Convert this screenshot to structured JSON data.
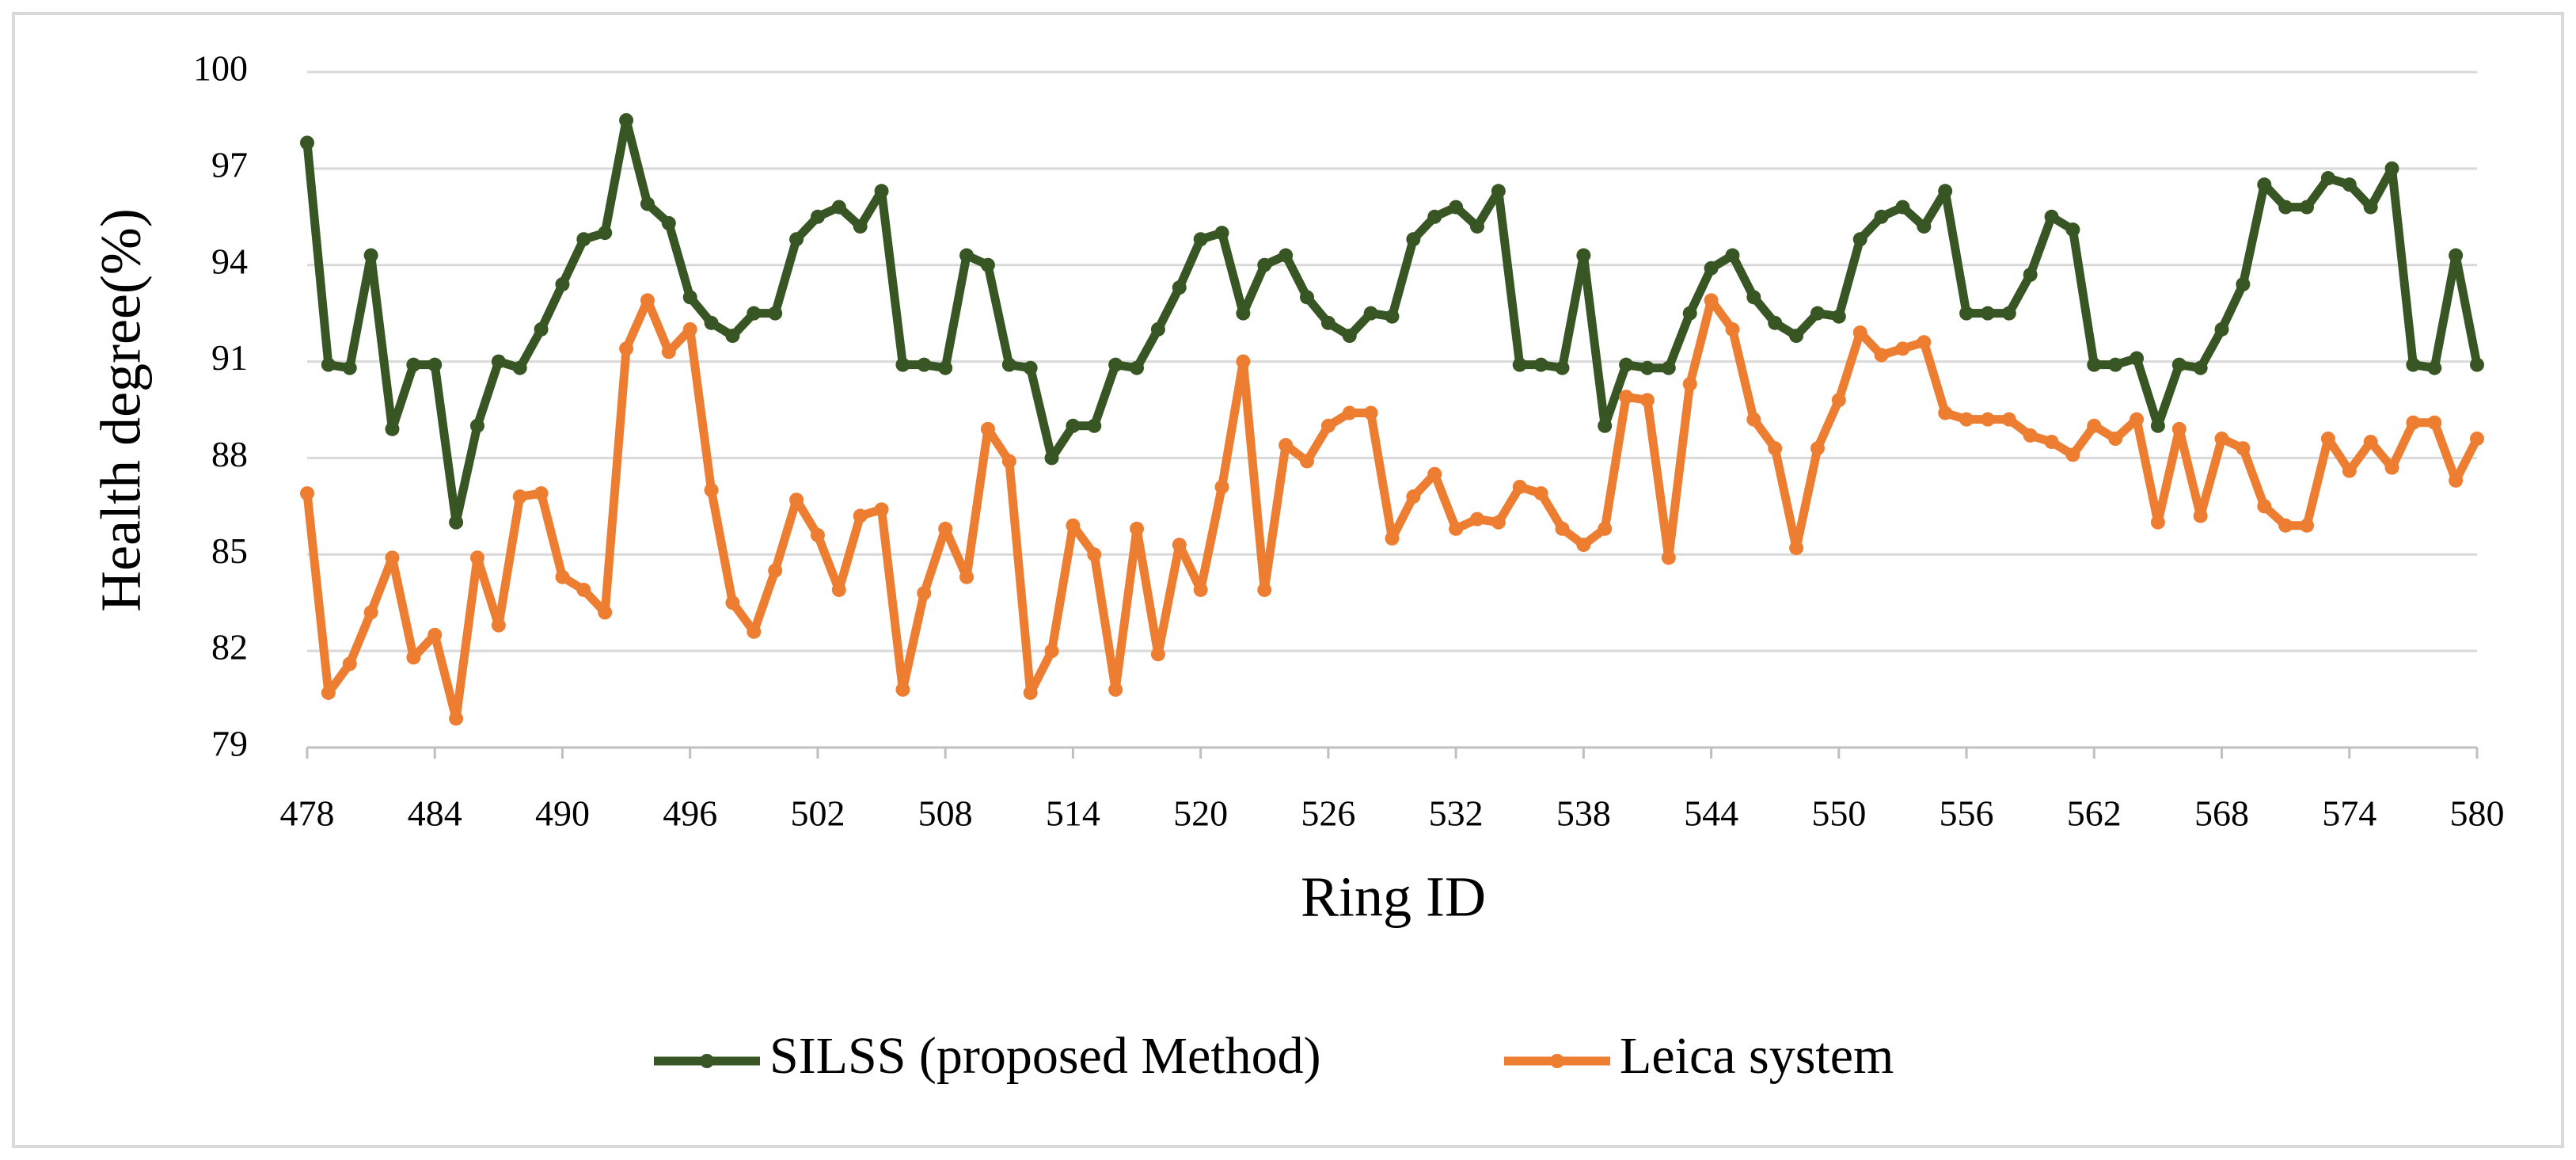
{
  "chart_data": {
    "type": "line",
    "x_label": "Ring ID",
    "y_label": "Health degree(%)",
    "x": [
      478,
      479,
      480,
      481,
      482,
      483,
      484,
      485,
      486,
      487,
      488,
      489,
      490,
      491,
      492,
      493,
      494,
      495,
      496,
      497,
      498,
      499,
      500,
      501,
      502,
      503,
      504,
      505,
      506,
      507,
      508,
      509,
      510,
      511,
      512,
      513,
      514,
      515,
      516,
      517,
      518,
      519,
      520,
      521,
      522,
      523,
      524,
      525,
      526,
      527,
      528,
      529,
      530,
      531,
      532,
      533,
      534,
      535,
      536,
      537,
      538,
      539,
      540,
      541,
      542,
      543,
      544,
      545,
      546,
      547,
      548,
      549,
      550,
      551,
      552,
      553,
      554,
      555,
      556,
      557,
      558,
      559,
      560,
      561,
      562,
      563,
      564,
      565,
      566,
      567,
      568,
      569,
      570,
      571,
      572,
      573,
      574,
      575,
      576,
      577,
      578,
      579,
      580
    ],
    "series": [
      {
        "name": "SILSS (proposed Method)",
        "color": "#375623",
        "values": [
          97.8,
          90.9,
          90.8,
          94.3,
          88.9,
          90.9,
          90.9,
          86,
          89,
          91,
          90.8,
          92,
          93.4,
          94.8,
          95,
          98.5,
          95.9,
          95.3,
          93,
          92.2,
          91.8,
          92.5,
          92.5,
          94.8,
          95.5,
          95.8,
          95.2,
          96.3,
          90.9,
          90.9,
          90.8,
          94.3,
          94,
          90.9,
          90.8,
          88,
          89,
          89,
          90.9,
          90.8,
          92,
          93.3,
          94.8,
          95,
          92.5,
          94,
          94.3,
          93,
          92.2,
          91.8,
          92.5,
          92.4,
          94.8,
          95.5,
          95.8,
          95.2,
          96.3,
          90.9,
          90.9,
          90.8,
          94.3,
          89,
          90.9,
          90.8,
          90.8,
          92.5,
          93.9,
          94.3,
          93,
          92.2,
          91.8,
          92.5,
          92.4,
          94.8,
          95.5,
          95.8,
          95.2,
          96.3,
          92.5,
          92.5,
          92.5,
          93.7,
          95.5,
          95.1,
          90.9,
          90.9,
          91.1,
          89,
          90.9,
          90.8,
          92,
          93.4,
          96.5,
          95.8,
          95.8,
          96.7,
          96.5,
          95.8,
          97,
          90.9,
          90.8,
          94.3,
          90.9
        ]
      },
      {
        "name": "Leica system",
        "color": "#ed7d31",
        "values": [
          86.9,
          80.7,
          81.6,
          83.2,
          84.9,
          81.8,
          82.5,
          79.9,
          84.9,
          82.8,
          86.8,
          86.9,
          84.3,
          83.9,
          83.2,
          91.4,
          92.9,
          91.3,
          92,
          87,
          83.5,
          82.6,
          84.5,
          86.7,
          85.6,
          83.9,
          86.2,
          86.4,
          80.8,
          83.8,
          85.8,
          84.3,
          88.9,
          87.9,
          80.7,
          82,
          85.9,
          85,
          80.8,
          85.8,
          81.9,
          85.3,
          83.9,
          87.1,
          91,
          83.9,
          88.4,
          87.9,
          89,
          89.4,
          89.4,
          85.5,
          86.8,
          87.5,
          85.8,
          86.1,
          86,
          87.1,
          86.9,
          85.8,
          85.3,
          85.8,
          89.9,
          89.8,
          84.9,
          90.3,
          92.9,
          92,
          89.2,
          88.3,
          85.2,
          88.3,
          89.8,
          91.9,
          91.2,
          91.4,
          91.6,
          89.4,
          89.2,
          89.2,
          89.2,
          88.7,
          88.5,
          88.1,
          89,
          88.6,
          89.2,
          86,
          88.9,
          86.2,
          88.6,
          88.3,
          86.5,
          85.9,
          85.9,
          88.6,
          87.6,
          88.5,
          87.7,
          89.1,
          89.1,
          87.3,
          88.6
        ]
      }
    ],
    "xlim": [
      478,
      580
    ],
    "xticks": [
      478,
      484,
      490,
      496,
      502,
      508,
      514,
      520,
      526,
      532,
      538,
      544,
      550,
      556,
      562,
      568,
      574,
      580
    ],
    "ylim": [
      79,
      100
    ],
    "yticks": [
      79,
      82,
      85,
      88,
      91,
      94,
      97,
      100
    ],
    "grid": true,
    "legend": "bottom",
    "markers": true
  }
}
